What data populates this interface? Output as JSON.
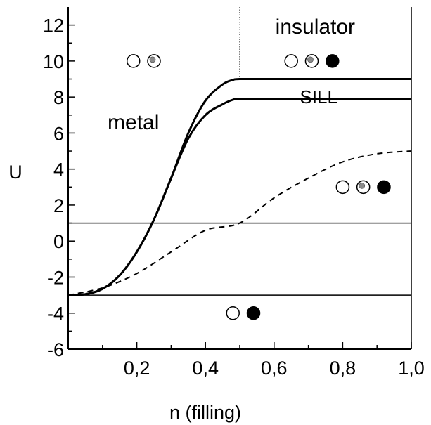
{
  "chart_data": {
    "type": "line",
    "xlabel": "n (filling)",
    "ylabel": "U",
    "xlim": [
      0,
      1.0
    ],
    "ylim": [
      -6,
      13
    ],
    "x_ticks": [
      {
        "value": 0.2,
        "label": "0,2"
      },
      {
        "value": 0.4,
        "label": "0,4"
      },
      {
        "value": 0.6,
        "label": "0,6"
      },
      {
        "value": 0.8,
        "label": "0,8"
      },
      {
        "value": 1.0,
        "label": "1,0"
      }
    ],
    "y_ticks": [
      {
        "value": -6,
        "label": "-6"
      },
      {
        "value": -4,
        "label": "-4"
      },
      {
        "value": -2,
        "label": "-2"
      },
      {
        "value": 0,
        "label": "0"
      },
      {
        "value": 2,
        "label": "2"
      },
      {
        "value": 4,
        "label": "4"
      },
      {
        "value": 6,
        "label": "6"
      },
      {
        "value": 8,
        "label": "8"
      },
      {
        "value": 10,
        "label": "10"
      },
      {
        "value": 12,
        "label": "12"
      }
    ],
    "grid": false,
    "series": [
      {
        "style": "solid",
        "x": [
          0,
          0.05,
          0.1,
          0.15,
          0.2,
          0.25,
          0.3,
          0.35,
          0.4,
          0.45,
          0.48,
          0.5,
          0.6,
          0.7,
          0.8,
          0.9,
          1.0
        ],
        "y": [
          -3,
          -2.95,
          -2.65,
          -1.9,
          -0.6,
          1.2,
          3.5,
          6.0,
          7.8,
          8.7,
          8.95,
          9.0,
          9.0,
          9.0,
          9.0,
          9.0,
          9.0
        ]
      },
      {
        "style": "solid",
        "x": [
          0,
          0.05,
          0.1,
          0.15,
          0.2,
          0.25,
          0.3,
          0.35,
          0.4,
          0.45,
          0.48,
          0.5,
          0.6,
          0.7,
          0.8,
          0.9,
          1.0
        ],
        "y": [
          -3,
          -2.95,
          -2.65,
          -1.9,
          -0.6,
          1.2,
          3.5,
          5.7,
          7.0,
          7.6,
          7.85,
          7.9,
          7.9,
          7.9,
          7.9,
          7.9,
          7.9
        ]
      },
      {
        "style": "dashed",
        "x": [
          0,
          0.1,
          0.2,
          0.3,
          0.4,
          0.5,
          0.6,
          0.7,
          0.8,
          0.9,
          1.0
        ],
        "y": [
          -3,
          -2.6,
          -1.8,
          -0.6,
          0.6,
          1.0,
          2.4,
          3.5,
          4.4,
          4.85,
          5.0
        ]
      },
      {
        "style": "solid-thin",
        "x": [
          0,
          1.0
        ],
        "y": [
          1.0,
          1.0
        ]
      },
      {
        "style": "solid-thin",
        "x": [
          0,
          1.0
        ],
        "y": [
          -3.0,
          -3.0
        ]
      }
    ],
    "vertical_lines": [
      {
        "x": 0.5,
        "style": "dotted"
      }
    ],
    "annotations": [
      {
        "text": "insulator",
        "x": 0.72,
        "y": 11.9
      },
      {
        "text": "metal",
        "x": 0.19,
        "y": 6.6
      },
      {
        "text": "SILL",
        "x": 0.73,
        "y": 8.0
      }
    ],
    "site_markers": [
      {
        "x": 0.19,
        "y": 10,
        "kind": "empty"
      },
      {
        "x": 0.25,
        "y": 10,
        "kind": "half"
      },
      {
        "x": 0.65,
        "y": 10,
        "kind": "empty"
      },
      {
        "x": 0.71,
        "y": 10,
        "kind": "half"
      },
      {
        "x": 0.77,
        "y": 10,
        "kind": "full"
      },
      {
        "x": 0.8,
        "y": 3,
        "kind": "empty"
      },
      {
        "x": 0.86,
        "y": 3,
        "kind": "half"
      },
      {
        "x": 0.92,
        "y": 3,
        "kind": "full"
      },
      {
        "x": 0.48,
        "y": -4,
        "kind": "empty"
      },
      {
        "x": 0.54,
        "y": -4,
        "kind": "full"
      }
    ]
  },
  "colors": {
    "ink": "#000000",
    "half_dot": "#8a8a8a",
    "background": "#ffffff"
  }
}
